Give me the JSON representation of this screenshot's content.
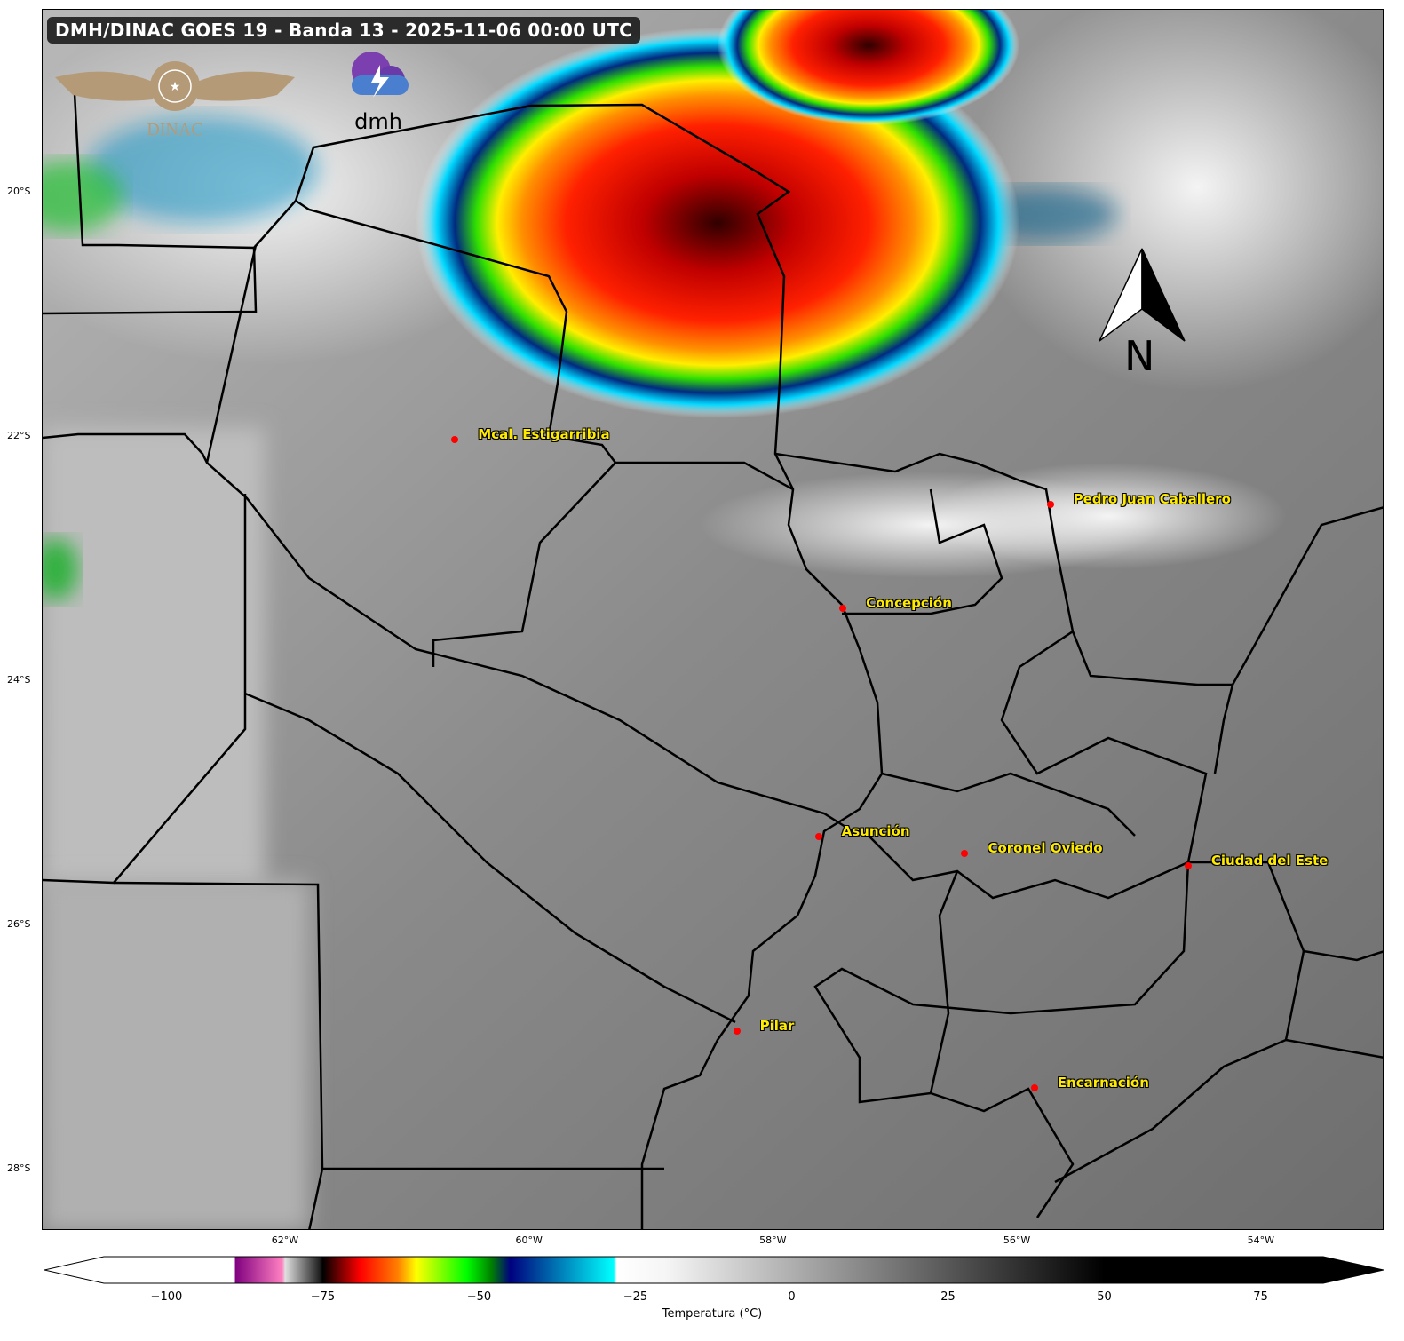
{
  "title": "DMH/DINAC GOES 19 - Banda 13 - 2025-11-06 00:00 UTC",
  "logos": {
    "dinac": "DINAC",
    "dmh": "dmh"
  },
  "north_arrow": {
    "label": "N",
    "icon": "north-arrow-icon"
  },
  "map_extent": {
    "lon": [
      -64.0,
      -53.0
    ],
    "lat": [
      -28.5,
      -18.5
    ]
  },
  "x_ticks": [
    {
      "lon": -62,
      "label": "62°W"
    },
    {
      "lon": -60,
      "label": "60°W"
    },
    {
      "lon": -58,
      "label": "58°W"
    },
    {
      "lon": -56,
      "label": "56°W"
    },
    {
      "lon": -54,
      "label": "54°W"
    }
  ],
  "y_ticks": [
    {
      "lat": -20,
      "label": "20°S"
    },
    {
      "lat": -22,
      "label": "22°S"
    },
    {
      "lat": -24,
      "label": "24°S"
    },
    {
      "lat": -26,
      "label": "26°S"
    },
    {
      "lat": -28,
      "label": "28°S"
    }
  ],
  "cities": [
    {
      "name": "Mcal. Estigarribia",
      "lon": -60.62,
      "lat": -22.02
    },
    {
      "name": "Pedro Juan Caballero",
      "lon": -55.74,
      "lat": -22.55
    },
    {
      "name": "Concepción",
      "lon": -57.44,
      "lat": -23.4
    },
    {
      "name": "Asunción",
      "lon": -57.64,
      "lat": -25.27
    },
    {
      "name": "Coronel Oviedo",
      "lon": -56.44,
      "lat": -25.41
    },
    {
      "name": "Ciudad del Este",
      "lon": -54.61,
      "lat": -25.51
    },
    {
      "name": "Pilar",
      "lon": -58.31,
      "lat": -26.86
    },
    {
      "name": "Encarnación",
      "lon": -55.87,
      "lat": -27.33
    }
  ],
  "colorbar": {
    "label": "Temperatura (°C)",
    "range": [
      -110,
      85
    ],
    "ticks": [
      {
        "v": -100,
        "label": "−100"
      },
      {
        "v": -75,
        "label": "−75"
      },
      {
        "v": -50,
        "label": "−50"
      },
      {
        "v": -25,
        "label": "−25"
      },
      {
        "v": 0,
        "label": "0"
      },
      {
        "v": 25,
        "label": "25"
      },
      {
        "v": 50,
        "label": "50"
      },
      {
        "v": 75,
        "label": "75"
      }
    ],
    "stops": [
      {
        "v": -110,
        "c": "#ffffff"
      },
      {
        "v": -89.1,
        "c": "#ffffff"
      },
      {
        "v": -89,
        "c": "#800080"
      },
      {
        "v": -81.5,
        "c": "#ff80c0"
      },
      {
        "v": -81,
        "c": "#e0e0e0"
      },
      {
        "v": -75.5,
        "c": "#202020"
      },
      {
        "v": -75,
        "c": "#000000"
      },
      {
        "v": -69,
        "c": "#ff0000"
      },
      {
        "v": -63,
        "c": "#ff8000"
      },
      {
        "v": -60,
        "c": "#ffff00"
      },
      {
        "v": -52,
        "c": "#00ff00"
      },
      {
        "v": -48,
        "c": "#008000"
      },
      {
        "v": -45,
        "c": "#000080"
      },
      {
        "v": -40,
        "c": "#0050a0"
      },
      {
        "v": -28.5,
        "c": "#00ffff"
      },
      {
        "v": -28,
        "c": "#ffffff"
      },
      {
        "v": -20,
        "c": "#f5f5f5"
      },
      {
        "v": 50,
        "c": "#000000"
      },
      {
        "v": 85,
        "c": "#000000"
      }
    ]
  }
}
